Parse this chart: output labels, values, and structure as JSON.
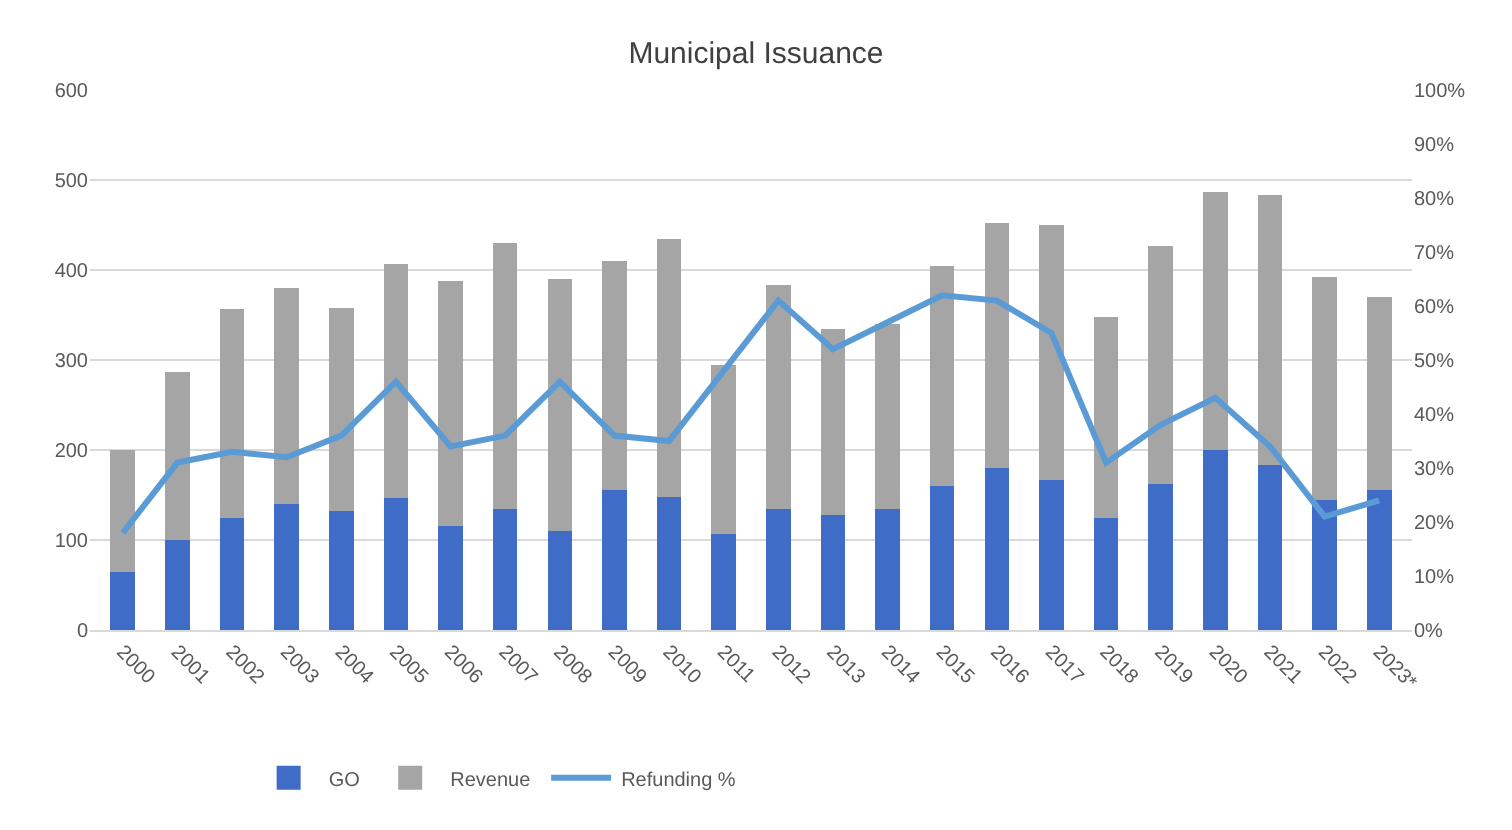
{
  "chart_data": {
    "type": "bar",
    "title": "Municipal Issuance",
    "stacked": true,
    "categories": [
      "2000",
      "2001",
      "2002",
      "2003",
      "2004",
      "2005",
      "2006",
      "2007",
      "2008",
      "2009",
      "2010",
      "2011",
      "2012",
      "2013",
      "2014",
      "2015",
      "2016",
      "2017",
      "2018",
      "2019",
      "2020",
      "2021",
      "2022",
      "2023*"
    ],
    "series": [
      {
        "name": "GO",
        "color": "#3f6cc6",
        "values": [
          65,
          100,
          125,
          140,
          132,
          147,
          116,
          134,
          110,
          156,
          148,
          107,
          135,
          128,
          135,
          160,
          180,
          167,
          124,
          162,
          200,
          183,
          145,
          156
        ]
      },
      {
        "name": "Revenue",
        "color": "#a5a5a5",
        "values": [
          135,
          187,
          232,
          240,
          226,
          260,
          272,
          296,
          280,
          254,
          287,
          188,
          248,
          207,
          205,
          245,
          272,
          283,
          224,
          265,
          287,
          300,
          247,
          214
        ]
      },
      {
        "name": "Refunding %",
        "type": "line",
        "axis": "y2",
        "color": "#5b9bd5",
        "values": [
          18,
          31,
          33,
          32,
          36,
          46,
          34,
          36,
          46,
          36,
          35,
          48,
          61,
          52,
          57,
          62,
          61,
          55,
          31,
          38,
          43,
          34,
          21,
          24
        ]
      }
    ],
    "ylim": [
      0,
      600
    ],
    "yticks": [
      0,
      100,
      200,
      300,
      400,
      500,
      600
    ],
    "y2lim": [
      0,
      100
    ],
    "y2ticks": [
      {
        "value": 0,
        "label": "0%"
      },
      {
        "value": 10,
        "label": "10%"
      },
      {
        "value": 20,
        "label": "20%"
      },
      {
        "value": 30,
        "label": "30%"
      },
      {
        "value": 40,
        "label": "40%"
      },
      {
        "value": 50,
        "label": "50%"
      },
      {
        "value": 60,
        "label": "60%"
      },
      {
        "value": 70,
        "label": "70%"
      },
      {
        "value": 80,
        "label": "80%"
      },
      {
        "value": 90,
        "label": "90%"
      },
      {
        "value": 100,
        "label": "100%"
      }
    ],
    "grid": "y",
    "legend": "bottom",
    "marker": "none",
    "line_style": "solid"
  }
}
